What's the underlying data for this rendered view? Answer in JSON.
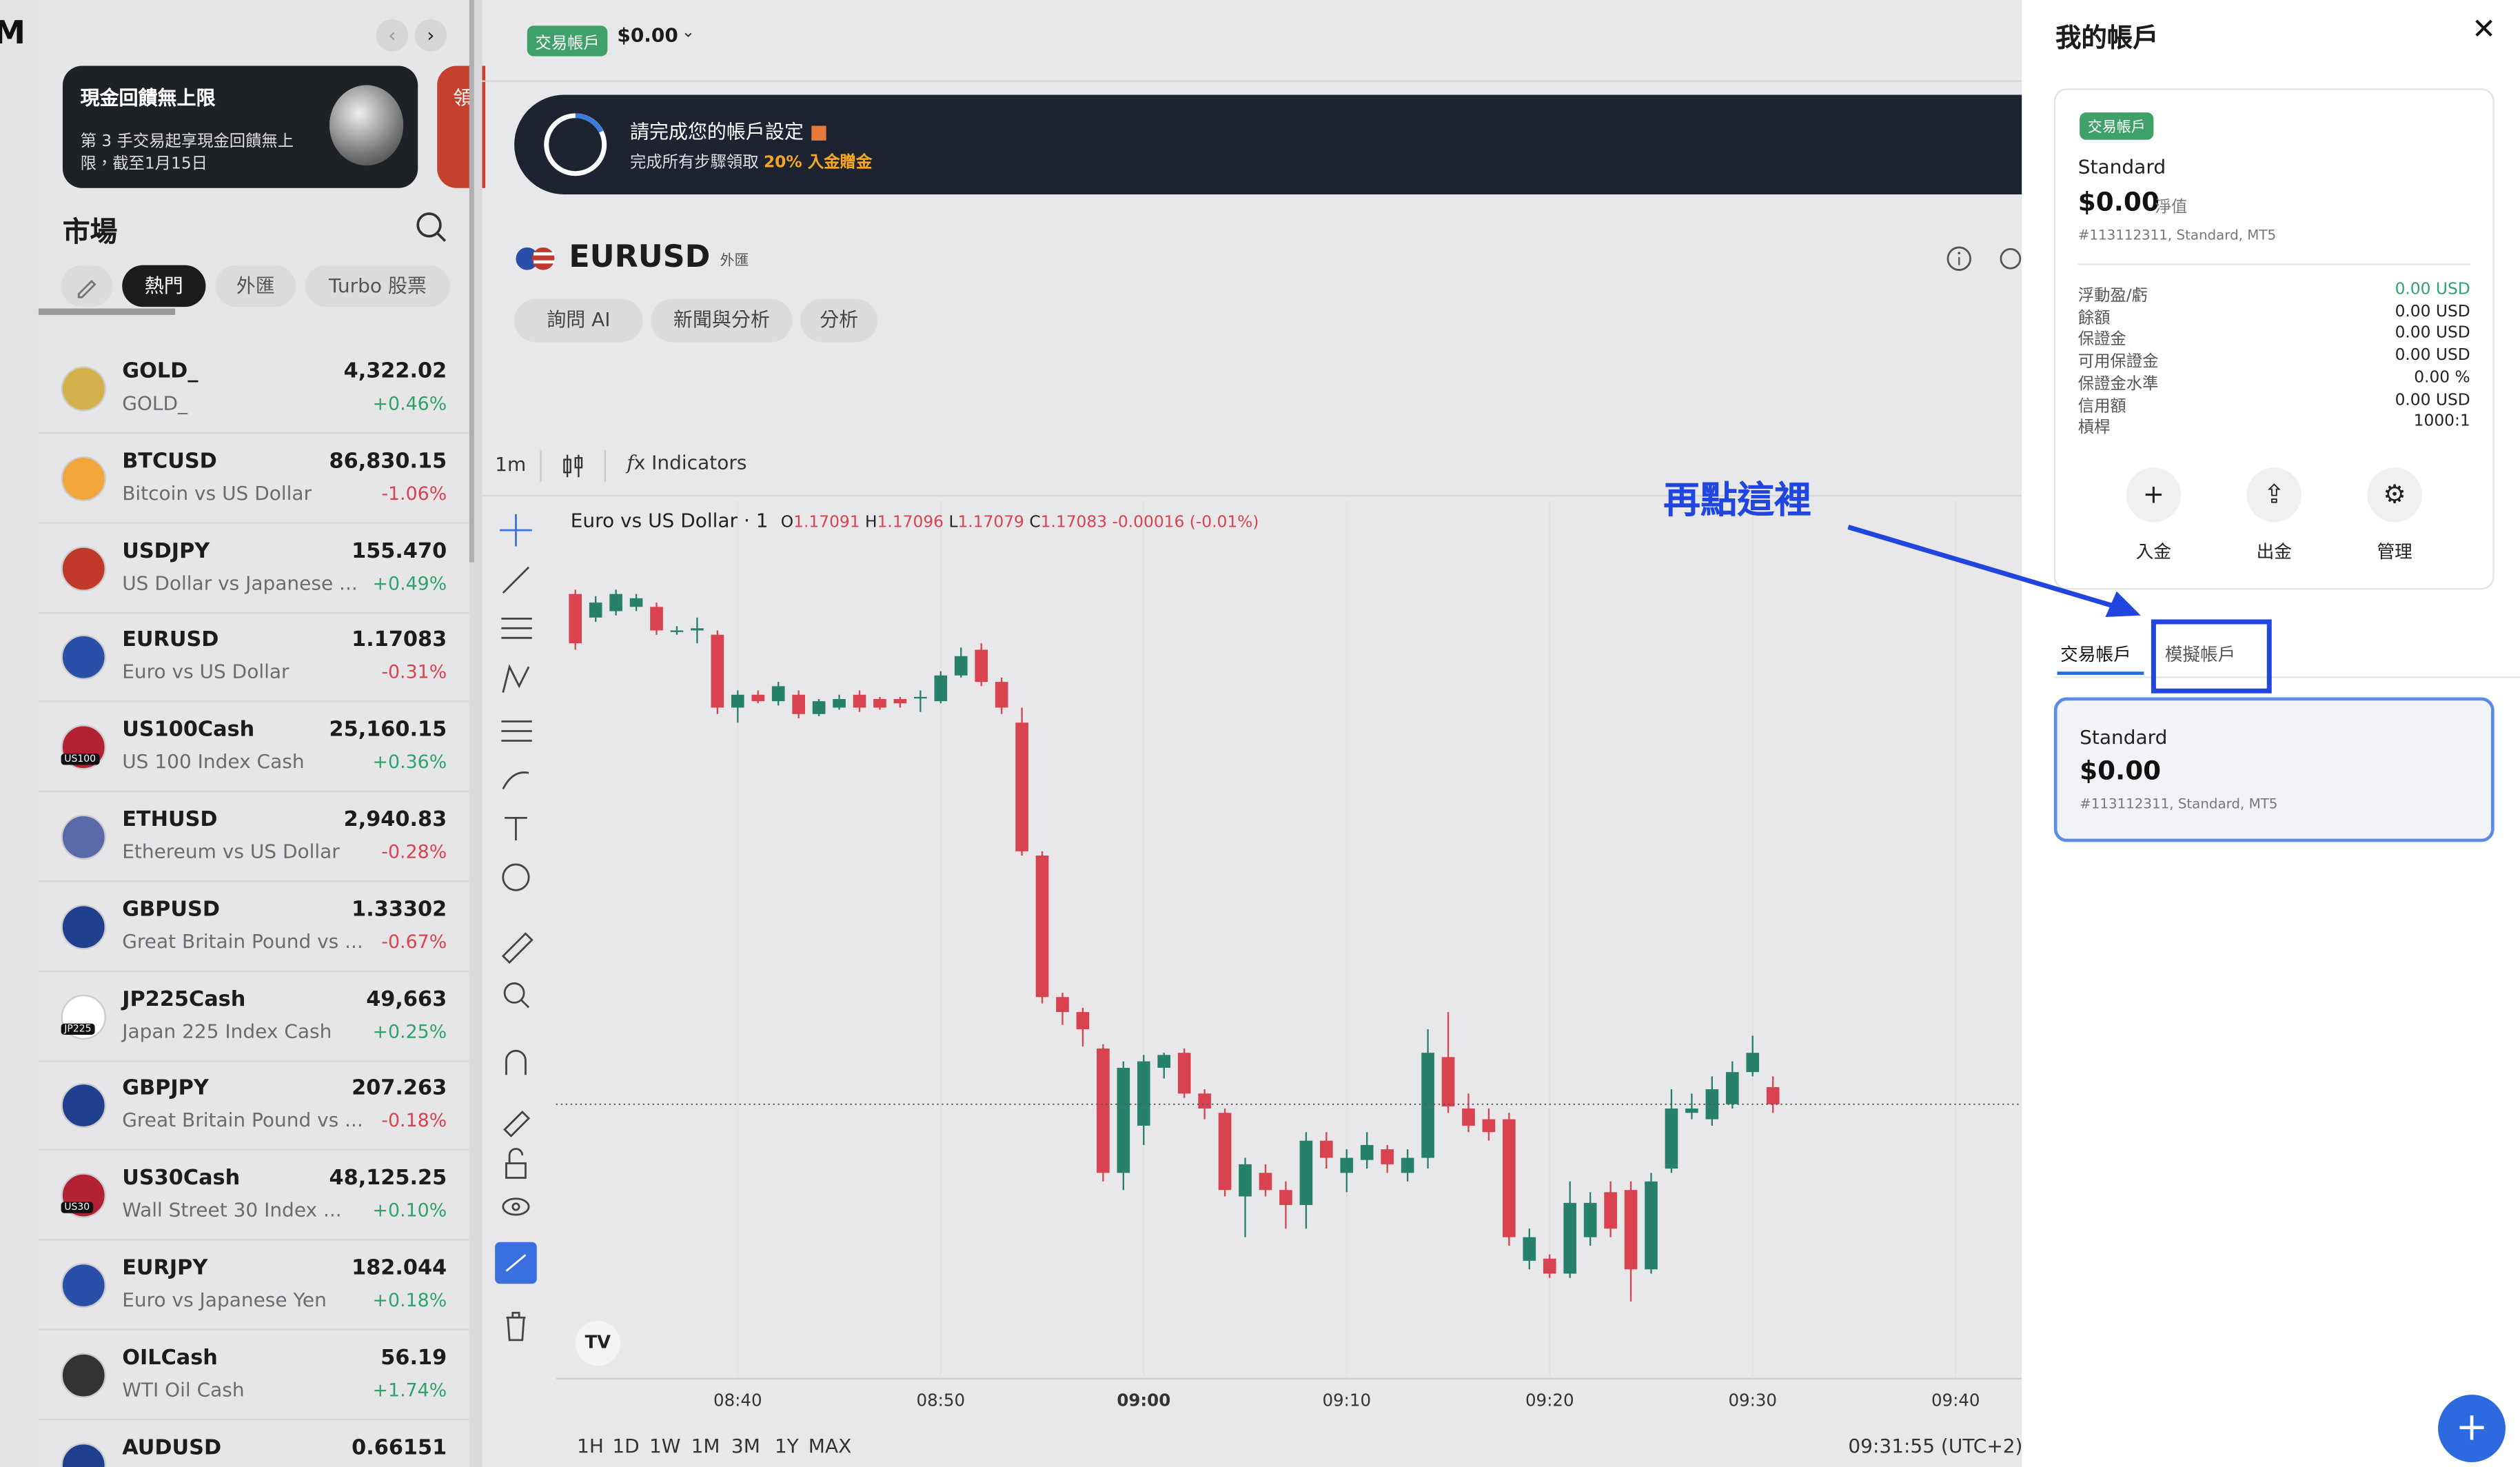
{
  "sidebar": {
    "promo": {
      "title": "現金回饋無上限",
      "body_line1": "第 3 手交易起享現金回饋無上",
      "body_line2": "限，截至1月15日",
      "next_card_title": "領"
    },
    "market_title": "市場",
    "tabs": [
      "熱門",
      "外匯",
      "Turbo 股票"
    ],
    "instruments": [
      {
        "symbol": "GOLD_",
        "name": "GOLD_",
        "price": "4,322.02",
        "change": "+0.46%"
      },
      {
        "symbol": "BTCUSD",
        "name": "Bitcoin vs US Dollar",
        "price": "86,830.15",
        "change": "-1.06%"
      },
      {
        "symbol": "USDJPY",
        "name": "US Dollar vs Japanese ...",
        "price": "155.470",
        "change": "+0.49%"
      },
      {
        "symbol": "EURUSD",
        "name": "Euro vs US Dollar",
        "price": "1.17083",
        "change": "-0.31%"
      },
      {
        "symbol": "US100Cash",
        "name": "US 100 Index Cash",
        "price": "25,160.15",
        "change": "+0.36%",
        "badge": "US100"
      },
      {
        "symbol": "ETHUSD",
        "name": "Ethereum vs US Dollar",
        "price": "2,940.83",
        "change": "-0.28%"
      },
      {
        "symbol": "GBPUSD",
        "name": "Great Britain Pound vs ...",
        "price": "1.33302",
        "change": "-0.67%"
      },
      {
        "symbol": "JP225Cash",
        "name": "Japan 225 Index Cash",
        "price": "49,663",
        "change": "+0.25%",
        "badge": "JP225"
      },
      {
        "symbol": "GBPJPY",
        "name": "Great Britain Pound vs ...",
        "price": "207.263",
        "change": "-0.18%"
      },
      {
        "symbol": "US30Cash",
        "name": "Wall Street 30 Index ...",
        "price": "48,125.25",
        "change": "+0.10%",
        "badge": "US30"
      },
      {
        "symbol": "EURJPY",
        "name": "Euro vs Japanese Yen",
        "price": "182.044",
        "change": "+0.18%"
      },
      {
        "symbol": "OILCash",
        "name": "WTI Oil Cash",
        "price": "56.19",
        "change": "+1.74%"
      },
      {
        "symbol": "AUDUSD",
        "name": "",
        "price": "0.66151",
        "change": ""
      }
    ]
  },
  "topbar": {
    "account_badge": "交易帳戶",
    "balance": "$0.00"
  },
  "banner": {
    "title": "請完成您的帳戶設定",
    "text": "完成所有步驟領取",
    "highlight": "20% 入金贈金"
  },
  "symbol_header": {
    "symbol": "EURUSD",
    "category": "外匯",
    "buttons": [
      "詢問 AI",
      "新聞與分析",
      "分析"
    ]
  },
  "chart_toolbar": {
    "interval": "1m",
    "indicators": "Indicators"
  },
  "legend": {
    "title": "Euro vs US Dollar · 1",
    "o": "O",
    "h": "H",
    "l": "L",
    "c": "C",
    "change": "-0.00016 (-0.01%)"
  },
  "chart_data": {
    "type": "candlestick",
    "up_color": "#26806a",
    "down_color": "#d9434f",
    "xticks": [
      "08:40",
      "08:50",
      "09:00",
      "09:10",
      "09:20",
      "09:30",
      "09:40"
    ],
    "open": [
      1.17321,
      1.1731,
      1.17313,
      1.17315,
      1.17315,
      1.17304,
      1.17304,
      1.17302,
      1.17268,
      1.17274,
      1.17271,
      1.17274,
      1.17265,
      1.17268,
      1.17274,
      1.17272,
      1.17272,
      1.17273,
      1.17271,
      1.17283,
      1.17295,
      1.1728,
      1.17261,
      1.17199,
      1.17133,
      1.17126,
      1.17109,
      1.17051,
      1.17073,
      1.171,
      1.17107,
      1.17088,
      1.17079,
      1.1704,
      1.17051,
      1.17043,
      1.17036,
      1.17066,
      1.17051,
      1.17057,
      1.17062,
      1.17051,
      1.17058,
      1.17105,
      1.17081,
      1.17076,
      1.17076,
      1.1701,
      1.17011,
      1.17004,
      1.17021,
      1.17042,
      1.17043,
      1.17006,
      1.17053,
      1.17079,
      1.17076,
      1.17083,
      1.17098,
      1.17091
    ],
    "high": [
      1.17323,
      1.1732,
      1.17323,
      1.17321,
      1.17317,
      1.17306,
      1.1731,
      1.17304,
      1.17276,
      1.17276,
      1.1728,
      1.17276,
      1.17272,
      1.17274,
      1.17276,
      1.17273,
      1.17273,
      1.17276,
      1.17285,
      1.17296,
      1.17298,
      1.17282,
      1.17268,
      1.17201,
      1.17135,
      1.17128,
      1.17111,
      1.17103,
      1.17106,
      1.17107,
      1.17109,
      1.1709,
      1.17081,
      1.17058,
      1.17055,
      1.17047,
      1.1707,
      1.1707,
      1.17062,
      1.1707,
      1.17064,
      1.17062,
      1.17118,
      1.17126,
      1.17088,
      1.17081,
      1.17079,
      1.17025,
      1.17013,
      1.17047,
      1.17042,
      1.17047,
      1.17047,
      1.17051,
      1.1709,
      1.17088,
      1.17096,
      1.17103,
      1.17115,
      1.17096
    ],
    "low": [
      1.17295,
      1.17308,
      1.17311,
      1.17313,
      1.17302,
      1.17302,
      1.17298,
      1.17265,
      1.17261,
      1.1727,
      1.17269,
      1.17263,
      1.17264,
      1.17267,
      1.17266,
      1.17267,
      1.17268,
      1.17266,
      1.1727,
      1.17282,
      1.17278,
      1.17265,
      1.17199,
      1.1713,
      1.1712,
      1.1711,
      1.17047,
      1.17043,
      1.17064,
      1.17095,
      1.17086,
      1.17076,
      1.1704,
      1.17021,
      1.1704,
      1.17025,
      1.17025,
      1.17053,
      1.17042,
      1.17053,
      1.17051,
      1.17047,
      1.17053,
      1.17079,
      1.1707,
      1.17066,
      1.17017,
      1.17006,
      1.17002,
      1.17002,
      1.17017,
      1.17021,
      1.16991,
      1.17004,
      1.17051,
      1.17076,
      1.17073,
      1.17081,
      1.17096,
      1.17079
    ],
    "close": [
      1.17298,
      1.17317,
      1.17321,
      1.17319,
      1.17304,
      1.17304,
      1.17305,
      1.17268,
      1.17274,
      1.17271,
      1.17278,
      1.17265,
      1.17271,
      1.17272,
      1.17268,
      1.17268,
      1.1727,
      1.17273,
      1.17283,
      1.17292,
      1.1728,
      1.17268,
      1.17201,
      1.17133,
      1.17126,
      1.17118,
      1.17051,
      1.171,
      1.17103,
      1.17106,
      1.17088,
      1.17081,
      1.17043,
      1.17055,
      1.17043,
      1.17036,
      1.17066,
      1.17058,
      1.17058,
      1.17064,
      1.17055,
      1.17058,
      1.17107,
      1.17082,
      1.17073,
      1.1707,
      1.17021,
      1.17021,
      1.17004,
      1.17037,
      1.17037,
      1.17025,
      1.17006,
      1.17047,
      1.17081,
      1.17081,
      1.1709,
      1.17098,
      1.17107,
      1.17083
    ]
  },
  "range_buttons": [
    "1H",
    "1D",
    "1W",
    "1M",
    "3M",
    "1Y",
    "MAX"
  ],
  "clock": "09:31:55 (UTC+2)",
  "annotation": "再點這裡",
  "account_panel": {
    "title": "我的帳戶",
    "card": {
      "badge": "交易帳戶",
      "type": "Standard",
      "equity": "$0.00",
      "equity_label": "淨值",
      "account_info": "#113112311, Standard, MT5",
      "rows": [
        [
          "浮動盈/虧",
          "0.00 USD"
        ],
        [
          "餘額",
          "0.00 USD"
        ],
        [
          "保證金",
          "0.00 USD"
        ],
        [
          "可用保證金",
          "0.00 USD"
        ],
        [
          "保證金水準",
          "0.00 %"
        ],
        [
          "信用額",
          "0.00 USD"
        ],
        [
          "槓桿",
          "1000:1"
        ]
      ],
      "actions": [
        "入金",
        "出金",
        "管理"
      ]
    },
    "tabs": [
      "交易帳戶",
      "模擬帳戶"
    ],
    "account": {
      "type": "Standard",
      "balance": "$0.00",
      "account_info": "#113112311, Standard, MT5"
    }
  }
}
